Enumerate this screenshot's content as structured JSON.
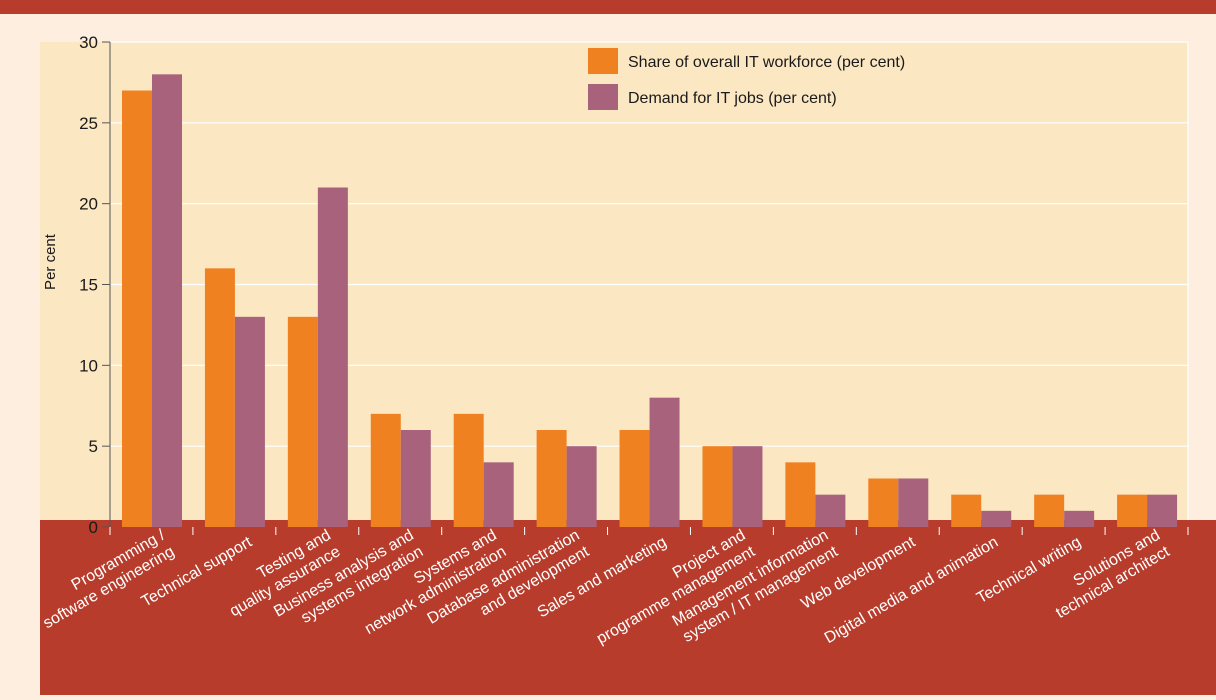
{
  "colors": {
    "page_background": "#fdeee0",
    "plot_background": "#fce7c3",
    "top_rule": "#b73c2c",
    "x_label_band": "#b73c2c",
    "gridline": "#ffffff",
    "share_series": "#ef8121",
    "demand_series": "#a8627c",
    "text": "#1a1a1a",
    "x_label_text": "#ffffff"
  },
  "chart_data": {
    "type": "bar",
    "title": "",
    "xlabel": "",
    "ylabel": "Per cent",
    "ylim": [
      0,
      30
    ],
    "yticks": [
      0,
      5,
      10,
      15,
      20,
      25,
      30
    ],
    "grid": true,
    "legend_position": "top-right",
    "categories": [
      [
        "Programming /",
        "software engineering"
      ],
      [
        "Technical support"
      ],
      [
        "Testing and",
        "quality assurance"
      ],
      [
        "Business analysis and",
        "systems integration"
      ],
      [
        "Systems and",
        "network administration"
      ],
      [
        "Database administration",
        "and development"
      ],
      [
        "Sales and marketing"
      ],
      [
        "Project and",
        "programme management"
      ],
      [
        "Management information",
        "system / IT management"
      ],
      [
        "Web development"
      ],
      [
        "Digital media and animation"
      ],
      [
        "Technical writing"
      ],
      [
        "Solutions and",
        "technical architect"
      ]
    ],
    "series": [
      {
        "name": "Share of overall IT workforce (per cent)",
        "color": "#ef8121",
        "values": [
          27,
          16,
          13,
          7,
          7,
          6,
          6,
          5,
          4,
          3,
          2,
          2,
          2
        ]
      },
      {
        "name": "Demand for IT jobs (per cent)",
        "color": "#a8627c",
        "values": [
          28,
          13,
          21,
          6,
          4,
          5,
          8,
          5,
          2,
          3,
          1,
          1,
          2
        ]
      }
    ]
  }
}
